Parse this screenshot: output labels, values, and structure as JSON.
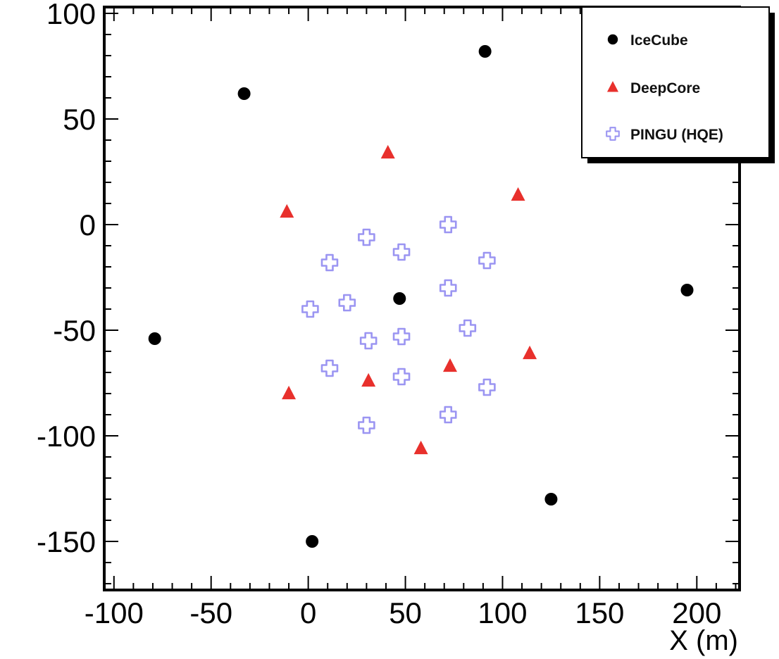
{
  "chart_data": {
    "type": "scatter",
    "xlabel": "X (m)",
    "ylabel": "",
    "xlim": [
      -105,
      222
    ],
    "ylim": [
      -173,
      103
    ],
    "xticks": [
      -100,
      -50,
      0,
      50,
      100,
      150,
      200
    ],
    "yticks": [
      100,
      50,
      0,
      -50,
      -100,
      -150
    ],
    "legend_position": "top-right",
    "grid": false,
    "series": [
      {
        "name": "IceCube",
        "marker": "circle",
        "color": "#000000",
        "points": [
          [
            -33,
            62
          ],
          [
            91,
            82
          ],
          [
            195,
            -31
          ],
          [
            -79,
            -54
          ],
          [
            47,
            -35
          ],
          [
            125,
            -130
          ],
          [
            2,
            -150
          ]
        ]
      },
      {
        "name": "DeepCore",
        "marker": "triangle",
        "color": "#e8302c",
        "points": [
          [
            41,
            34
          ],
          [
            -11,
            6
          ],
          [
            108,
            14
          ],
          [
            73,
            -67
          ],
          [
            114,
            -61
          ],
          [
            31,
            -74
          ],
          [
            -10,
            -80
          ],
          [
            58,
            -106
          ]
        ]
      },
      {
        "name": "PINGU (HQE)",
        "marker": "open-cross",
        "color": "#9b95f2",
        "points": [
          [
            72,
            0
          ],
          [
            30,
            -6
          ],
          [
            48,
            -13
          ],
          [
            11,
            -18
          ],
          [
            92,
            -17
          ],
          [
            72,
            -30
          ],
          [
            20,
            -37
          ],
          [
            1,
            -40
          ],
          [
            82,
            -49
          ],
          [
            31,
            -55
          ],
          [
            48,
            -53
          ],
          [
            11,
            -68
          ],
          [
            48,
            -72
          ],
          [
            92,
            -77
          ],
          [
            72,
            -90
          ],
          [
            30,
            -95
          ]
        ]
      }
    ]
  }
}
